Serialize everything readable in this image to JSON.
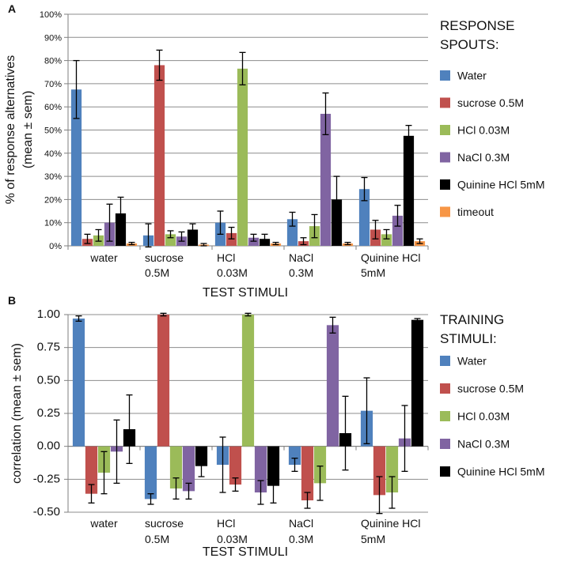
{
  "chart_data": [
    {
      "panel": "A",
      "type": "bar",
      "xlabel": "TEST STIMULI",
      "ylabel_line1": "% of response alternatives",
      "ylabel_line2": "(mean ± sem)",
      "ylim": [
        0,
        100
      ],
      "yticks": [
        0,
        10,
        20,
        30,
        40,
        50,
        60,
        70,
        80,
        90,
        100
      ],
      "ytick_labels": [
        "0%",
        "10%",
        "20%",
        "30%",
        "40%",
        "50%",
        "60%",
        "70%",
        "80%",
        "90%",
        "100%"
      ],
      "categories": [
        [
          "water"
        ],
        [
          "sucrose",
          "0.5M"
        ],
        [
          "HCl",
          "0.03M"
        ],
        [
          "NaCl",
          "0.3M"
        ],
        [
          "Quinine HCl",
          "5mM"
        ]
      ],
      "legend_title": [
        "RESPONSE",
        "SPOUTS:"
      ],
      "series": [
        {
          "name": "Water",
          "color": "#4f81bd",
          "values": [
            67.5,
            4.5,
            10,
            11.5,
            24.5
          ],
          "errors": [
            12.5,
            5,
            5,
            3,
            5
          ]
        },
        {
          "name": "sucrose 0.5M",
          "color": "#c0504d",
          "values": [
            3,
            78,
            5.5,
            2,
            7
          ],
          "errors": [
            2,
            6.5,
            2.5,
            1.5,
            4
          ]
        },
        {
          "name": "HCl 0.03M",
          "color": "#9bbb59",
          "values": [
            4.5,
            5,
            76.5,
            8.5,
            5
          ],
          "errors": [
            2.5,
            1.5,
            7,
            5,
            2
          ]
        },
        {
          "name": "NaCl 0.3M",
          "color": "#8064a2",
          "values": [
            10,
            4,
            3.5,
            57,
            13
          ],
          "errors": [
            8,
            2,
            1.5,
            9,
            4.5
          ]
        },
        {
          "name": "Quinine HCl 5mM",
          "color": "#000000",
          "values": [
            14,
            7,
            3,
            20,
            47.5
          ],
          "errors": [
            7,
            2.5,
            2,
            10,
            4.5
          ]
        },
        {
          "name": "timeout",
          "color": "#f79646",
          "values": [
            1,
            0.5,
            1,
            1,
            2
          ],
          "errors": [
            0.5,
            0.5,
            0.5,
            0.5,
            1
          ]
        }
      ]
    },
    {
      "panel": "B",
      "type": "bar",
      "xlabel": "TEST STIMULI",
      "ylabel_line1": "correlation (mean ± sem)",
      "ylim": [
        -0.5,
        1.0
      ],
      "yticks": [
        -0.5,
        -0.25,
        0,
        0.25,
        0.5,
        0.75,
        1.0
      ],
      "ytick_labels": [
        "-0.50",
        "-0.25",
        "0.00",
        "0.25",
        "0.50",
        "0.75",
        "1.00"
      ],
      "categories": [
        [
          "water"
        ],
        [
          "sucrose",
          "0.5M"
        ],
        [
          "HCl",
          "0.03M"
        ],
        [
          "NaCl",
          "0.3M"
        ],
        [
          "Quinine HCl",
          "5mM"
        ]
      ],
      "legend_title": [
        "TRAINING",
        "STIMULI:"
      ],
      "series": [
        {
          "name": "Water",
          "color": "#4f81bd",
          "values": [
            0.97,
            -0.4,
            -0.14,
            -0.14,
            0.27
          ],
          "errors": [
            0.02,
            0.04,
            0.21,
            0.05,
            0.25
          ]
        },
        {
          "name": "sucrose 0.5M",
          "color": "#c0504d",
          "values": [
            -0.36,
            1.0,
            -0.29,
            -0.41,
            -0.37
          ],
          "errors": [
            0.07,
            0.01,
            0.05,
            0.06,
            0.14
          ]
        },
        {
          "name": "HCl 0.03M",
          "color": "#9bbb59",
          "values": [
            -0.2,
            -0.32,
            1.0,
            -0.28,
            -0.35
          ],
          "errors": [
            0.16,
            0.08,
            0.01,
            0.13,
            0.12
          ]
        },
        {
          "name": "NaCl 0.3M",
          "color": "#8064a2",
          "values": [
            -0.04,
            -0.34,
            -0.35,
            0.92,
            0.06
          ],
          "errors": [
            0.24,
            0.06,
            0.09,
            0.06,
            0.25
          ]
        },
        {
          "name": "Quinine HCl 5mM",
          "color": "#000000",
          "values": [
            0.13,
            -0.15,
            -0.3,
            0.1,
            0.96
          ],
          "errors": [
            0.26,
            0.08,
            0.13,
            0.28,
            0.01
          ]
        }
      ]
    }
  ]
}
